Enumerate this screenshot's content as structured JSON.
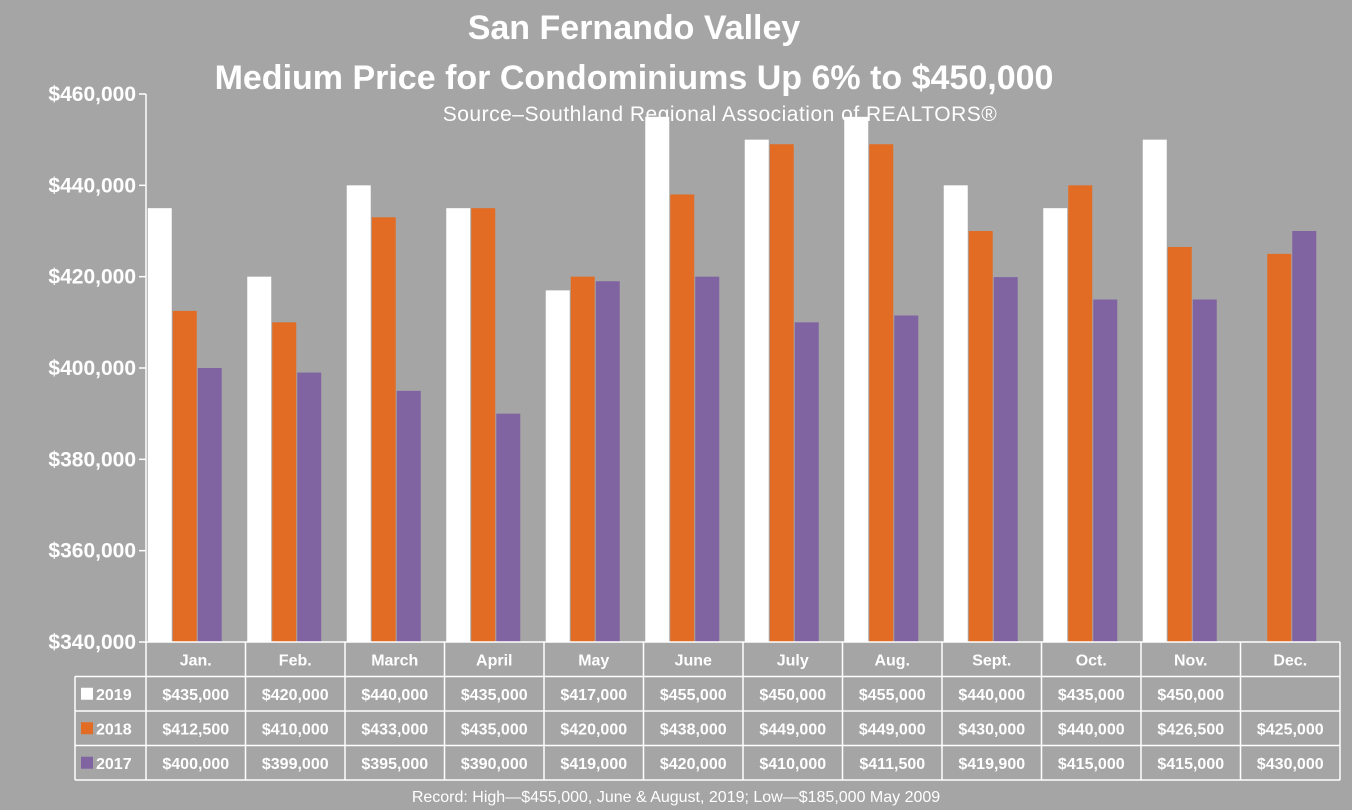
{
  "chart_data": {
    "type": "bar",
    "title": "San Fernando Valley",
    "subtitle": "Medium Price for Condominiums Up 6% to $450,000",
    "source": "Source–Southland Regional Association of REALTORS®",
    "footnote": "Record: High—$455,000, June & August, 2019; Low—$185,000 May 2009",
    "categories": [
      "Jan.",
      "Feb.",
      "March",
      "April",
      "May",
      "June",
      "July",
      "Aug.",
      "Sept.",
      "Oct.",
      "Nov.",
      "Dec."
    ],
    "ylim": [
      340000,
      460000
    ],
    "yticks": [
      340000,
      360000,
      380000,
      400000,
      420000,
      440000,
      460000
    ],
    "ytick_labels": [
      "$340,000",
      "$360,000",
      "$380,000",
      "$400,000",
      "$420,000",
      "$440,000",
      "$460,000"
    ],
    "grid": false,
    "legend": "data-table",
    "series": [
      {
        "name": "2019",
        "color": "#ffffff",
        "values": [
          435000,
          420000,
          440000,
          435000,
          417000,
          455000,
          450000,
          455000,
          440000,
          435000,
          450000,
          null
        ],
        "labels": [
          "$435,000",
          "$420,000",
          "$440,000",
          "$435,000",
          "$417,000",
          "$455,000",
          "$450,000",
          "$455,000",
          "$440,000",
          "$435,000",
          "$450,000",
          ""
        ]
      },
      {
        "name": "2018",
        "color": "#e36c25",
        "values": [
          412500,
          410000,
          433000,
          435000,
          420000,
          438000,
          449000,
          449000,
          430000,
          440000,
          426500,
          425000
        ],
        "labels": [
          "$412,500",
          "$410,000",
          "$433,000",
          "$435,000",
          "$420,000",
          "$438,000",
          "$449,000",
          "$449,000",
          "$430,000",
          "$440,000",
          "$426,500",
          "$425,000"
        ]
      },
      {
        "name": "2017",
        "color": "#8064a2",
        "values": [
          400000,
          399000,
          395000,
          390000,
          419000,
          420000,
          410000,
          411500,
          419900,
          415000,
          415000,
          430000
        ],
        "labels": [
          "$400,000",
          "$399,000",
          "$395,000",
          "$390,000",
          "$419,000",
          "$420,000",
          "$410,000",
          "$411,500",
          "$419,900",
          "$415,000",
          "$415,000",
          "$430,000"
        ]
      }
    ]
  }
}
